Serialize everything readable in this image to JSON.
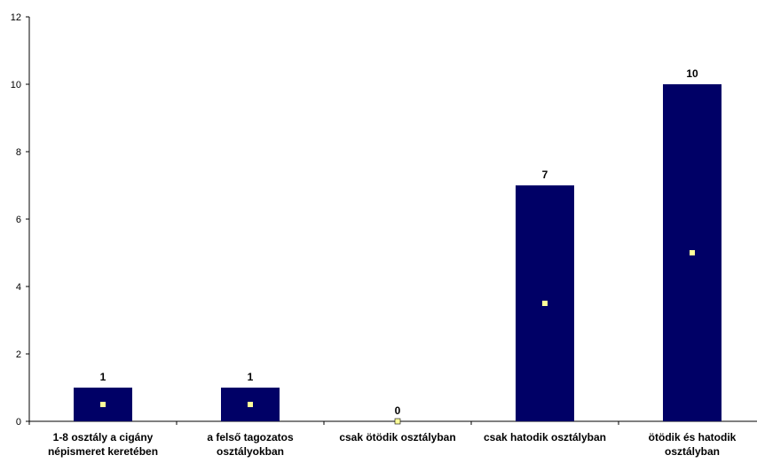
{
  "chart_data": {
    "type": "bar",
    "title": "",
    "xlabel": "",
    "ylabel": "",
    "categories": [
      [
        "1-8 osztály a cigány",
        "népismeret keretében"
      ],
      [
        "a felső tagozatos",
        "osztályokban"
      ],
      [
        "csak ötödik osztályban"
      ],
      [
        "csak hatodik osztályban"
      ],
      [
        "ötödik és hatodik",
        "osztályban"
      ]
    ],
    "values": [
      1,
      1,
      0,
      7,
      10
    ],
    "data_labels": [
      "1",
      "1",
      "0",
      "7",
      "10"
    ],
    "ylim": [
      0,
      12
    ],
    "yticks": [
      0,
      2,
      4,
      6,
      8,
      10,
      12
    ],
    "grid": false,
    "legend": "none",
    "bar_color": "#000066",
    "marker_color": "#FFFF99"
  }
}
